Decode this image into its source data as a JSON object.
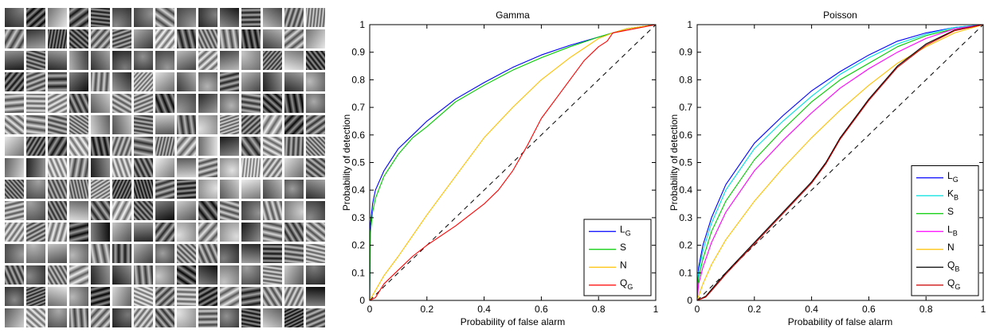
{
  "patch_grid": {
    "rows": 15,
    "cols": 15,
    "content": "filter-patches"
  },
  "chart_data": [
    {
      "type": "line",
      "title": "Gamma",
      "xlabel": "Probability of false alarm",
      "ylabel": "Probability of detection",
      "xlim": [
        0,
        1
      ],
      "ylim": [
        0,
        1
      ],
      "xticks": [
        0,
        0.2,
        0.4,
        0.6,
        0.8,
        1
      ],
      "yticks": [
        0,
        0.1,
        0.2,
        0.3,
        0.4,
        0.5,
        0.6,
        0.7,
        0.8,
        0.9,
        1
      ],
      "xtick_labels": [
        "0",
        "0.2",
        "0.4",
        "0.6",
        "0.8",
        "1"
      ],
      "ytick_labels": [
        "0",
        "0.1",
        "0.2",
        "0.3",
        "0.4",
        "0.5",
        "0.6",
        "0.7",
        "0.8",
        "0.9",
        "1"
      ],
      "grid": false,
      "legend_position": "bottom-right",
      "reference_line": {
        "style": "dashed",
        "color": "#000000",
        "x": [
          0,
          1
        ],
        "y": [
          0,
          1
        ]
      },
      "series": [
        {
          "name": "L",
          "sub": "G",
          "color": "#0000ff",
          "x": [
            0,
            0.002,
            0.01,
            0.02,
            0.05,
            0.1,
            0.15,
            0.2,
            0.3,
            0.4,
            0.5,
            0.6,
            0.7,
            0.8,
            0.9,
            1
          ],
          "y": [
            0,
            0.27,
            0.35,
            0.4,
            0.47,
            0.55,
            0.6,
            0.65,
            0.73,
            0.79,
            0.845,
            0.89,
            0.925,
            0.955,
            0.985,
            1
          ]
        },
        {
          "name": "S",
          "sub": "",
          "color": "#00cc00",
          "x": [
            0,
            0.002,
            0.01,
            0.02,
            0.05,
            0.1,
            0.15,
            0.2,
            0.3,
            0.4,
            0.5,
            0.6,
            0.7,
            0.8,
            0.9,
            1
          ],
          "y": [
            0,
            0.24,
            0.32,
            0.37,
            0.45,
            0.53,
            0.59,
            0.63,
            0.72,
            0.78,
            0.835,
            0.88,
            0.92,
            0.955,
            0.985,
            1
          ]
        },
        {
          "name": "N",
          "sub": "",
          "color": "#ffc000",
          "x": [
            0,
            0.05,
            0.1,
            0.2,
            0.3,
            0.4,
            0.5,
            0.6,
            0.7,
            0.75,
            0.8,
            0.85,
            0.9,
            1
          ],
          "y": [
            0,
            0.09,
            0.16,
            0.31,
            0.45,
            0.59,
            0.7,
            0.8,
            0.88,
            0.915,
            0.95,
            0.97,
            0.985,
            1
          ]
        },
        {
          "name": "Q",
          "sub": "G",
          "color": "#ff0000",
          "x": [
            0,
            0.02,
            0.05,
            0.1,
            0.15,
            0.2,
            0.3,
            0.4,
            0.45,
            0.5,
            0.55,
            0.6,
            0.65,
            0.7,
            0.75,
            0.8,
            0.83,
            0.85,
            0.9,
            0.95,
            1
          ],
          "y": [
            0,
            0.01,
            0.06,
            0.11,
            0.16,
            0.2,
            0.27,
            0.35,
            0.4,
            0.47,
            0.56,
            0.66,
            0.73,
            0.8,
            0.87,
            0.92,
            0.94,
            0.97,
            0.98,
            0.99,
            1
          ]
        }
      ]
    },
    {
      "type": "line",
      "title": "Poisson",
      "xlabel": "Probability of false alarm",
      "ylabel": "Probability of detection",
      "xlim": [
        0,
        1
      ],
      "ylim": [
        0,
        1
      ],
      "xticks": [
        0,
        0.2,
        0.4,
        0.6,
        0.8,
        1
      ],
      "yticks": [
        0,
        0.1,
        0.2,
        0.3,
        0.4,
        0.5,
        0.6,
        0.7,
        0.8,
        0.9,
        1
      ],
      "xtick_labels": [
        "0",
        "0.2",
        "0.4",
        "0.6",
        "0.8",
        "1"
      ],
      "ytick_labels": [
        "0",
        "0.1",
        "0.2",
        "0.3",
        "0.4",
        "0.5",
        "0.6",
        "0.7",
        "0.8",
        "0.9",
        "1"
      ],
      "grid": false,
      "legend_position": "bottom-right",
      "reference_line": {
        "style": "dashed",
        "color": "#000000",
        "x": [
          0,
          1
        ],
        "y": [
          0,
          1
        ]
      },
      "series": [
        {
          "name": "L",
          "sub": "G",
          "color": "#0000ff",
          "x": [
            0,
            0.005,
            0.02,
            0.05,
            0.1,
            0.2,
            0.3,
            0.4,
            0.5,
            0.6,
            0.7,
            0.8,
            0.9,
            1
          ],
          "y": [
            0,
            0.12,
            0.2,
            0.3,
            0.42,
            0.57,
            0.67,
            0.76,
            0.83,
            0.89,
            0.94,
            0.97,
            0.99,
            1
          ]
        },
        {
          "name": "K",
          "sub": "B",
          "color": "#00e0e0",
          "x": [
            0,
            0.005,
            0.02,
            0.05,
            0.1,
            0.2,
            0.3,
            0.4,
            0.5,
            0.6,
            0.7,
            0.8,
            0.9,
            1
          ],
          "y": [
            0,
            0.1,
            0.18,
            0.28,
            0.4,
            0.55,
            0.65,
            0.74,
            0.82,
            0.88,
            0.93,
            0.965,
            0.99,
            1
          ]
        },
        {
          "name": "S",
          "sub": "",
          "color": "#00cc00",
          "x": [
            0,
            0.005,
            0.02,
            0.05,
            0.1,
            0.2,
            0.3,
            0.4,
            0.5,
            0.6,
            0.7,
            0.8,
            0.9,
            1
          ],
          "y": [
            0,
            0.08,
            0.15,
            0.25,
            0.36,
            0.51,
            0.62,
            0.72,
            0.8,
            0.86,
            0.92,
            0.96,
            0.985,
            1
          ]
        },
        {
          "name": "L",
          "sub": "B",
          "color": "#ff00ff",
          "x": [
            0,
            0.005,
            0.02,
            0.05,
            0.1,
            0.2,
            0.3,
            0.4,
            0.5,
            0.6,
            0.7,
            0.8,
            0.9,
            1
          ],
          "y": [
            0,
            0.06,
            0.12,
            0.21,
            0.32,
            0.47,
            0.58,
            0.68,
            0.77,
            0.84,
            0.9,
            0.95,
            0.985,
            1
          ]
        },
        {
          "name": "N",
          "sub": "",
          "color": "#ffc000",
          "x": [
            0,
            0.02,
            0.05,
            0.1,
            0.2,
            0.3,
            0.4,
            0.5,
            0.6,
            0.7,
            0.8,
            0.9,
            1
          ],
          "y": [
            0,
            0.06,
            0.13,
            0.22,
            0.36,
            0.48,
            0.59,
            0.69,
            0.78,
            0.86,
            0.92,
            0.97,
            1
          ]
        },
        {
          "name": "Q",
          "sub": "B",
          "color": "#000000",
          "x": [
            0,
            0.03,
            0.05,
            0.1,
            0.2,
            0.3,
            0.4,
            0.45,
            0.5,
            0.6,
            0.7,
            0.8,
            0.9,
            1
          ],
          "y": [
            0,
            0.015,
            0.04,
            0.1,
            0.21,
            0.32,
            0.43,
            0.5,
            0.59,
            0.73,
            0.85,
            0.93,
            0.98,
            1
          ]
        },
        {
          "name": "Q",
          "sub": "G",
          "color": "#cc0000",
          "x": [
            0,
            0.03,
            0.05,
            0.1,
            0.2,
            0.3,
            0.4,
            0.45,
            0.5,
            0.6,
            0.7,
            0.8,
            0.9,
            1
          ],
          "y": [
            0,
            0.012,
            0.035,
            0.095,
            0.205,
            0.315,
            0.425,
            0.495,
            0.585,
            0.725,
            0.845,
            0.925,
            0.978,
            1
          ]
        }
      ]
    }
  ]
}
